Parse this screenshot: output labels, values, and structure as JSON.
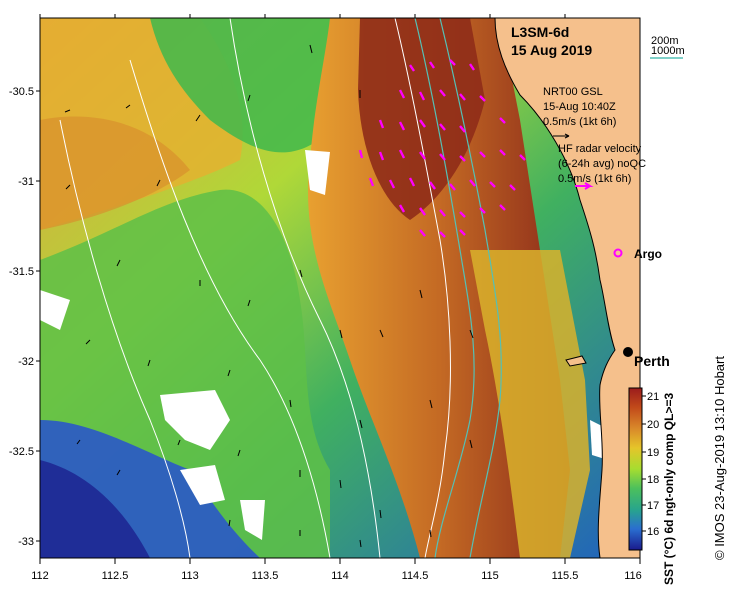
{
  "map": {
    "product": "L3SM-6d",
    "date": "15 Aug 2019",
    "x_ticks": [
      "112",
      "112.5",
      "113",
      "113.5",
      "114",
      "114.5",
      "115",
      "115.5",
      "116"
    ],
    "y_ticks": [
      "-30.5",
      "-31",
      "-31.5",
      "-32",
      "-32.5",
      "-33"
    ]
  },
  "legend": {
    "depth_200": "200m",
    "depth_1000": "1000m",
    "gsl_title": "NRT00 GSL",
    "gsl_time": "15-Aug 10:40Z",
    "gsl_scale": "0.5m/s (1kt 6h)",
    "hf_title": "HF radar velocity",
    "hf_avg": "(6-24h avg) noQC",
    "hf_scale": "0.5m/s (1kt 6h)",
    "argo": "Argo",
    "city": "Perth"
  },
  "colorbar": {
    "title": "SST (°C) 6d ngt-only comp QL>=3",
    "ticks": [
      "21",
      "20",
      "19",
      "18",
      "17",
      "16"
    ],
    "colors": [
      "#b22222",
      "#d2691e",
      "#e89a2a",
      "#d8c828",
      "#a6dd30",
      "#5cc85c",
      "#2aa678",
      "#2a8fc0",
      "#2a58c8",
      "#1c1c96"
    ]
  },
  "credit": "© IMOS 23-Aug-2019 13:10 Hobart",
  "colors": {
    "land": "#f5c08c",
    "coast": "#000000",
    "contour_200": "#ffffff",
    "contour_1000": "#55c0b5",
    "hf_arrow": "#ff00ff"
  }
}
